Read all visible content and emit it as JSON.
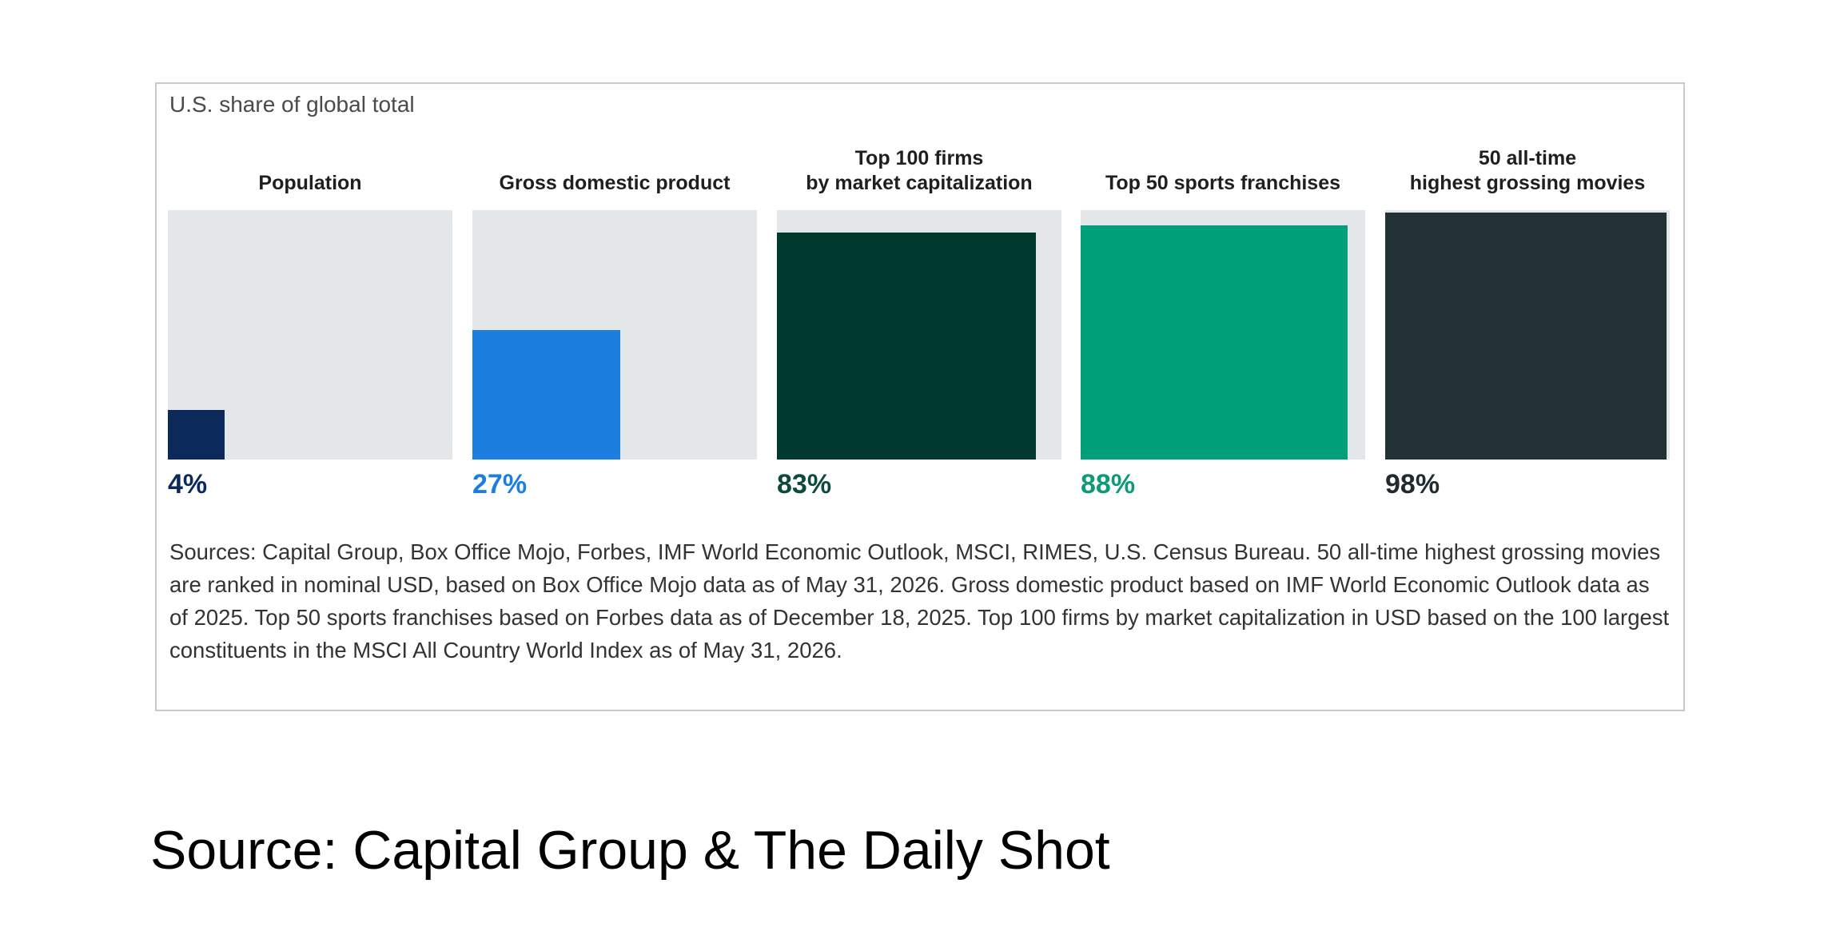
{
  "chart_data": {
    "type": "bar",
    "subtitle": "U.S. share of global total",
    "unit": "%",
    "ylim": [
      0,
      100
    ],
    "categories": [
      "Population",
      "Gross domestic product",
      "Top 100 firms\nby market capitalization",
      "Top 50 sports franchises",
      "50 all-time\nhighest grossing movies"
    ],
    "values": [
      4,
      27,
      83,
      88,
      98
    ],
    "value_labels": [
      "4%",
      "27%",
      "83%",
      "88%",
      "98%"
    ],
    "colors": [
      "#0b2a5b",
      "#1c7fe0",
      "#00392e",
      "#00a07a",
      "#223136"
    ],
    "label_colors": [
      "#0b2a5b",
      "#1c7fe0",
      "#0d4a3e",
      "#0e9a78",
      "#1f2b30"
    ],
    "background_color": "#e3e7ea",
    "notes": "Sources: Capital Group, Box Office Mojo, Forbes, IMF World Economic Outlook, MSCI, RIMES, U.S. Census Bureau. 50 all-time highest grossing movies are ranked in nominal USD, based on Box Office Mojo data as of May 31, 2026. Gross domestic product based on IMF World Economic Outlook data as of 2025. Top 50 sports franchises based on Forbes data as of December 18, 2025. Top 100 firms by market capitalization in USD based on the 100 largest constituents in the MSCI All Country World Index as of May 31, 2026."
  },
  "caption": "Source: Capital Group & The Daily Shot"
}
